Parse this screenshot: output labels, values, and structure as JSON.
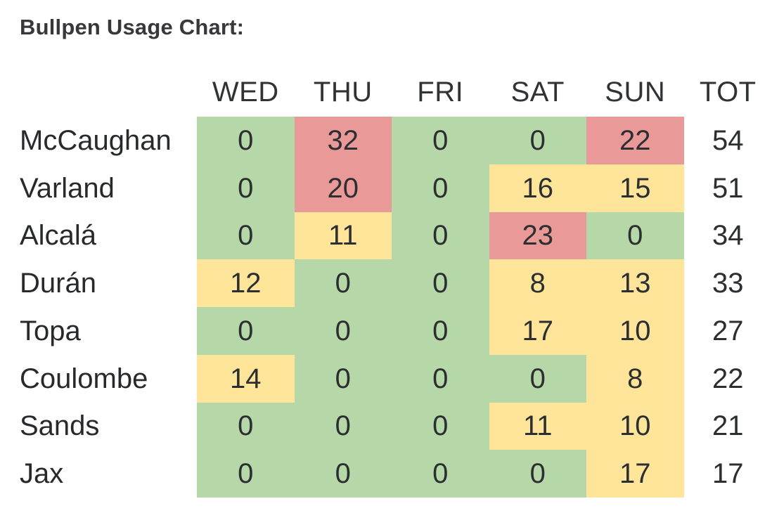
{
  "title": "Bullpen Usage Chart:",
  "chart_data": {
    "type": "heatmap",
    "title": "Bullpen Usage Chart:",
    "columns": [
      "WED",
      "THU",
      "FRI",
      "SAT",
      "SUN"
    ],
    "total_label": "TOT",
    "rows": [
      {
        "player": "McCaughan",
        "values": [
          0,
          32,
          0,
          0,
          22
        ],
        "levels": [
          "low",
          "high",
          "low",
          "low",
          "high"
        ],
        "total": 54
      },
      {
        "player": "Varland",
        "values": [
          0,
          20,
          0,
          16,
          15
        ],
        "levels": [
          "low",
          "high",
          "low",
          "mid",
          "mid"
        ],
        "total": 51
      },
      {
        "player": "Alcalá",
        "values": [
          0,
          11,
          0,
          23,
          0
        ],
        "levels": [
          "low",
          "mid",
          "low",
          "high",
          "low"
        ],
        "total": 34
      },
      {
        "player": "Durán",
        "values": [
          12,
          0,
          0,
          8,
          13
        ],
        "levels": [
          "mid",
          "low",
          "low",
          "mid",
          "mid"
        ],
        "total": 33
      },
      {
        "player": "Topa",
        "values": [
          0,
          0,
          0,
          17,
          10
        ],
        "levels": [
          "low",
          "low",
          "low",
          "mid",
          "mid"
        ],
        "total": 27
      },
      {
        "player": "Coulombe",
        "values": [
          14,
          0,
          0,
          0,
          8
        ],
        "levels": [
          "mid",
          "low",
          "low",
          "low",
          "mid"
        ],
        "total": 22
      },
      {
        "player": "Sands",
        "values": [
          0,
          0,
          0,
          11,
          10
        ],
        "levels": [
          "low",
          "low",
          "low",
          "mid",
          "mid"
        ],
        "total": 21
      },
      {
        "player": "Jax",
        "values": [
          0,
          0,
          0,
          0,
          17
        ],
        "levels": [
          "low",
          "low",
          "low",
          "low",
          "mid"
        ],
        "total": 17
      }
    ],
    "cell_colors": {
      "low": "#b6d7a8",
      "mid": "#ffe599",
      "high": "#ea9999"
    },
    "layout_hints": {
      "grid": false,
      "legend": "none",
      "zero_is_green": true,
      "high_threshold": 20
    }
  }
}
